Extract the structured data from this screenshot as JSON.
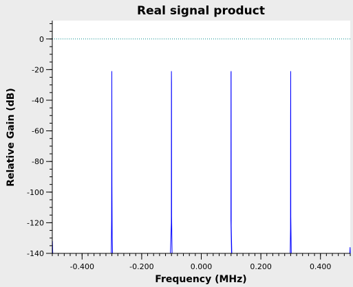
{
  "chart_data": {
    "type": "line",
    "title": "Real signal product",
    "xlabel": "Frequency (MHz)",
    "ylabel": "Relative Gain (dB)",
    "xlim": [
      -0.5,
      0.5
    ],
    "ylim": [
      -140,
      12
    ],
    "x_ticks": [
      -0.4,
      -0.2,
      0.0,
      0.2,
      0.4
    ],
    "x_tick_labels": [
      "-0.400",
      "-0.200",
      "0.000",
      "0.200",
      "0.400"
    ],
    "y_ticks": [
      0,
      -20,
      -40,
      -60,
      -80,
      -100,
      -120,
      -140
    ],
    "y_tick_labels": [
      "0",
      "-20",
      "-40",
      "-60",
      "-80",
      "-100",
      "-120",
      "-140"
    ],
    "reference_line": {
      "y": 0,
      "color": "#008b8b",
      "style": "dotted"
    },
    "grid": false,
    "background": "#ffffff",
    "series": [
      {
        "color": "#0000ff",
        "points": [
          [
            -0.4995,
            -140
          ],
          [
            -0.4995,
            -132
          ],
          [
            -0.4985,
            -140
          ],
          [
            -0.302,
            -140
          ],
          [
            -0.301,
            -118
          ],
          [
            -0.3002,
            -21
          ],
          [
            -0.2998,
            -95
          ],
          [
            -0.299,
            -130
          ],
          [
            -0.298,
            -140
          ],
          [
            -0.1035,
            -140
          ],
          [
            -0.1005,
            -120
          ],
          [
            -0.1002,
            -21
          ],
          [
            -0.0998,
            -29
          ],
          [
            -0.0995,
            -116
          ],
          [
            -0.098,
            -140
          ],
          [
            0.1015,
            -140
          ],
          [
            0.0995,
            -118
          ],
          [
            0.0998,
            -22
          ],
          [
            0.1002,
            -21
          ],
          [
            0.1005,
            -122
          ],
          [
            0.1025,
            -140
          ],
          [
            0.2985,
            -140
          ],
          [
            0.2995,
            -124
          ],
          [
            0.2998,
            -51
          ],
          [
            0.3002,
            -21
          ],
          [
            0.3005,
            -116
          ],
          [
            0.302,
            -140
          ],
          [
            0.4985,
            -140
          ],
          [
            0.4995,
            -136
          ],
          [
            0.5,
            -140
          ]
        ]
      }
    ]
  }
}
